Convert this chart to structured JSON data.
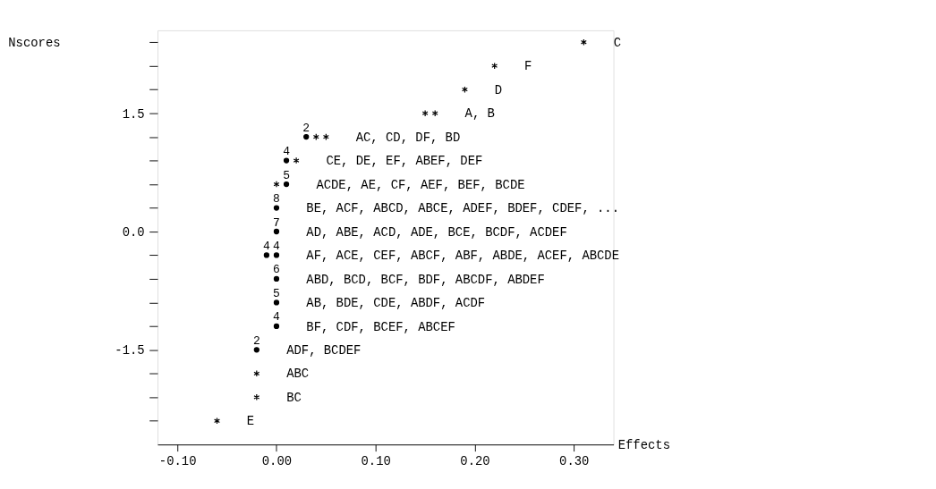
{
  "chart_data": {
    "type": "scatter",
    "xlabel": "Effects",
    "series": [
      {
        "marker": "cross",
        "color": "#000000",
        "x": [
          0.31,
          0.22,
          0.19,
          0.15,
          0.16,
          0.04,
          0.05,
          0.02,
          0.0,
          -0.02,
          -0.02,
          -0.06
        ],
        "values": [
          2.4,
          2.1,
          1.8,
          1.5,
          1.5,
          1.2,
          1.2,
          0.9,
          0.6,
          -1.8,
          -2.1,
          -2.4
        ]
      },
      {
        "marker": "circle",
        "color": "#000000",
        "x": [
          0.03,
          0.01,
          0.01,
          0.0,
          0.0,
          -0.01,
          0.0,
          0.0,
          0.0,
          0.0,
          -0.02
        ],
        "values": [
          1.2,
          0.9,
          0.6,
          0.3,
          0.0,
          -0.3,
          -0.3,
          -0.6,
          -0.9,
          -1.2,
          -1.5
        ]
      }
    ],
    "xlim": [
      -0.12,
      0.34
    ],
    "xticks": [
      {
        "value": -0.1,
        "label": "-0.10"
      },
      {
        "value": 0.0,
        "label": "0.00"
      },
      {
        "value": 0.1,
        "label": "0.10"
      },
      {
        "value": 0.2,
        "label": "0.20"
      },
      {
        "value": 0.3,
        "label": "0.30"
      }
    ],
    "ylim": [
      -2.7,
      2.55
    ],
    "yticks": [
      {
        "value": 2.4,
        "label": null
      },
      {
        "value": 2.1,
        "label": null
      },
      {
        "value": 1.8,
        "label": null
      },
      {
        "value": 1.5,
        "label": "1.5"
      },
      {
        "value": 1.2,
        "label": null
      },
      {
        "value": 0.9,
        "label": null
      },
      {
        "value": 0.6,
        "label": null
      },
      {
        "value": 0.3,
        "label": null
      },
      {
        "value": 0.0,
        "label": "0.0"
      },
      {
        "value": -0.3,
        "label": null
      },
      {
        "value": -0.6,
        "label": null
      },
      {
        "value": -0.9,
        "label": null
      },
      {
        "value": -1.2,
        "label": null
      },
      {
        "value": -1.5,
        "label": "-1.5"
      },
      {
        "value": -1.8,
        "label": null
      },
      {
        "value": -2.1,
        "label": null
      },
      {
        "value": -2.4,
        "label": null
      }
    ],
    "grid": false,
    "annotations": [
      "Nscores",
      {
        "text": "2",
        "x": 0.03,
        "y": 1.2
      },
      {
        "text": "4",
        "x": 0.01,
        "y": 0.9
      },
      {
        "text": "5",
        "x": 0.01,
        "y": 0.6
      },
      {
        "text": "8",
        "x": 0.0,
        "y": 0.3
      },
      {
        "text": "7",
        "x": 0.0,
        "y": 0.0
      },
      {
        "text": "4",
        "x": -0.01,
        "y": -0.3
      },
      {
        "text": "4",
        "x": 0.0,
        "y": -0.3
      },
      {
        "text": "6",
        "x": 0.0,
        "y": -0.6
      },
      {
        "text": "5",
        "x": 0.0,
        "y": -0.9
      },
      {
        "text": "4",
        "x": 0.0,
        "y": -1.2
      },
      {
        "text": "2",
        "x": -0.02,
        "y": -1.5
      },
      {
        "text": "C",
        "x": 0.31,
        "y": 2.4
      },
      {
        "text": "F",
        "x": 0.22,
        "y": 2.1
      },
      {
        "text": "D",
        "x": 0.19,
        "y": 1.8
      },
      {
        "text": "A, B",
        "x": 0.16,
        "y": 1.5
      },
      {
        "text": "AC, CD, DF, BD",
        "x": 0.05,
        "y": 1.2
      },
      {
        "text": "CE, DE, EF, ABEF, DEF",
        "x": 0.02,
        "y": 0.9
      },
      {
        "text": "ACDE, AE, CF, AEF, BEF, BCDE",
        "x": 0.01,
        "y": 0.6
      },
      {
        "text": "BE, ACF, ABCD, ABCE, ADEF, BDEF, CDEF, ...",
        "x": 0.0,
        "y": 0.3
      },
      {
        "text": "AD, ABE, ACD, ADE, BCE, BCDF, ACDEF",
        "x": 0.0,
        "y": 0.0
      },
      {
        "text": "AF, ACE, CEF, ABCF, ABF, ABDE, ACEF, ABCDE",
        "x": 0.0,
        "y": -0.3
      },
      {
        "text": "ABD, BCD, BCF, BDF, ABCDF, ABDEF",
        "x": 0.0,
        "y": -0.6
      },
      {
        "text": "AB, BDE, CDE, ABDF, ACDF",
        "x": 0.0,
        "y": -0.9
      },
      {
        "text": "BF, CDF, BCEF, ABCEF",
        "x": 0.0,
        "y": -1.2
      },
      {
        "text": "ADF, BCDEF",
        "x": -0.02,
        "y": -1.5
      },
      {
        "text": "ABC",
        "x": -0.02,
        "y": -1.8
      },
      {
        "text": "BC",
        "x": -0.02,
        "y": -2.1
      },
      {
        "text": "E",
        "x": -0.06,
        "y": -2.4
      }
    ]
  }
}
